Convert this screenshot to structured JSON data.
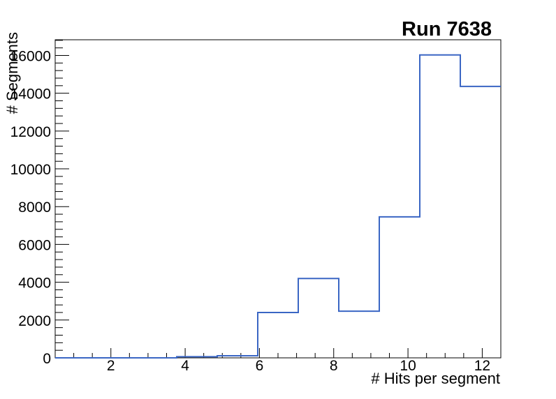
{
  "title": "Run 7638",
  "chart_data": {
    "type": "histogram-step",
    "title": "Run 7638",
    "xlabel": "# Hits per segment",
    "ylabel": "# Segments",
    "bin_edges": [
      0.5,
      1.5909,
      2.6818,
      3.7727,
      4.8636,
      5.9545,
      7.0455,
      8.1364,
      9.2273,
      10.3182,
      11.4091,
      12.5
    ],
    "values": [
      0,
      0,
      0,
      60,
      110,
      2400,
      4200,
      2470,
      7460,
      16030,
      14360
    ],
    "xlim": [
      0.5,
      12.5
    ],
    "ylim": [
      0,
      16830
    ],
    "x_major_ticks": [
      2,
      4,
      6,
      8,
      10,
      12
    ],
    "x_major_tick_labels": [
      "2",
      "4",
      "6",
      "8",
      "10",
      "12"
    ],
    "x_minor_step": 0.5,
    "y_major_ticks": [
      0,
      2000,
      4000,
      6000,
      8000,
      10000,
      12000,
      14000,
      16000
    ],
    "y_major_tick_labels": [
      "0",
      "2000",
      "4000",
      "6000",
      "8000",
      "10000",
      "12000",
      "14000",
      "16000"
    ],
    "y_minor_step": 400,
    "line_color": "#3a66c4",
    "frame_color": "#000000",
    "background_color": "#ffffff",
    "grid": false,
    "legend": null
  }
}
